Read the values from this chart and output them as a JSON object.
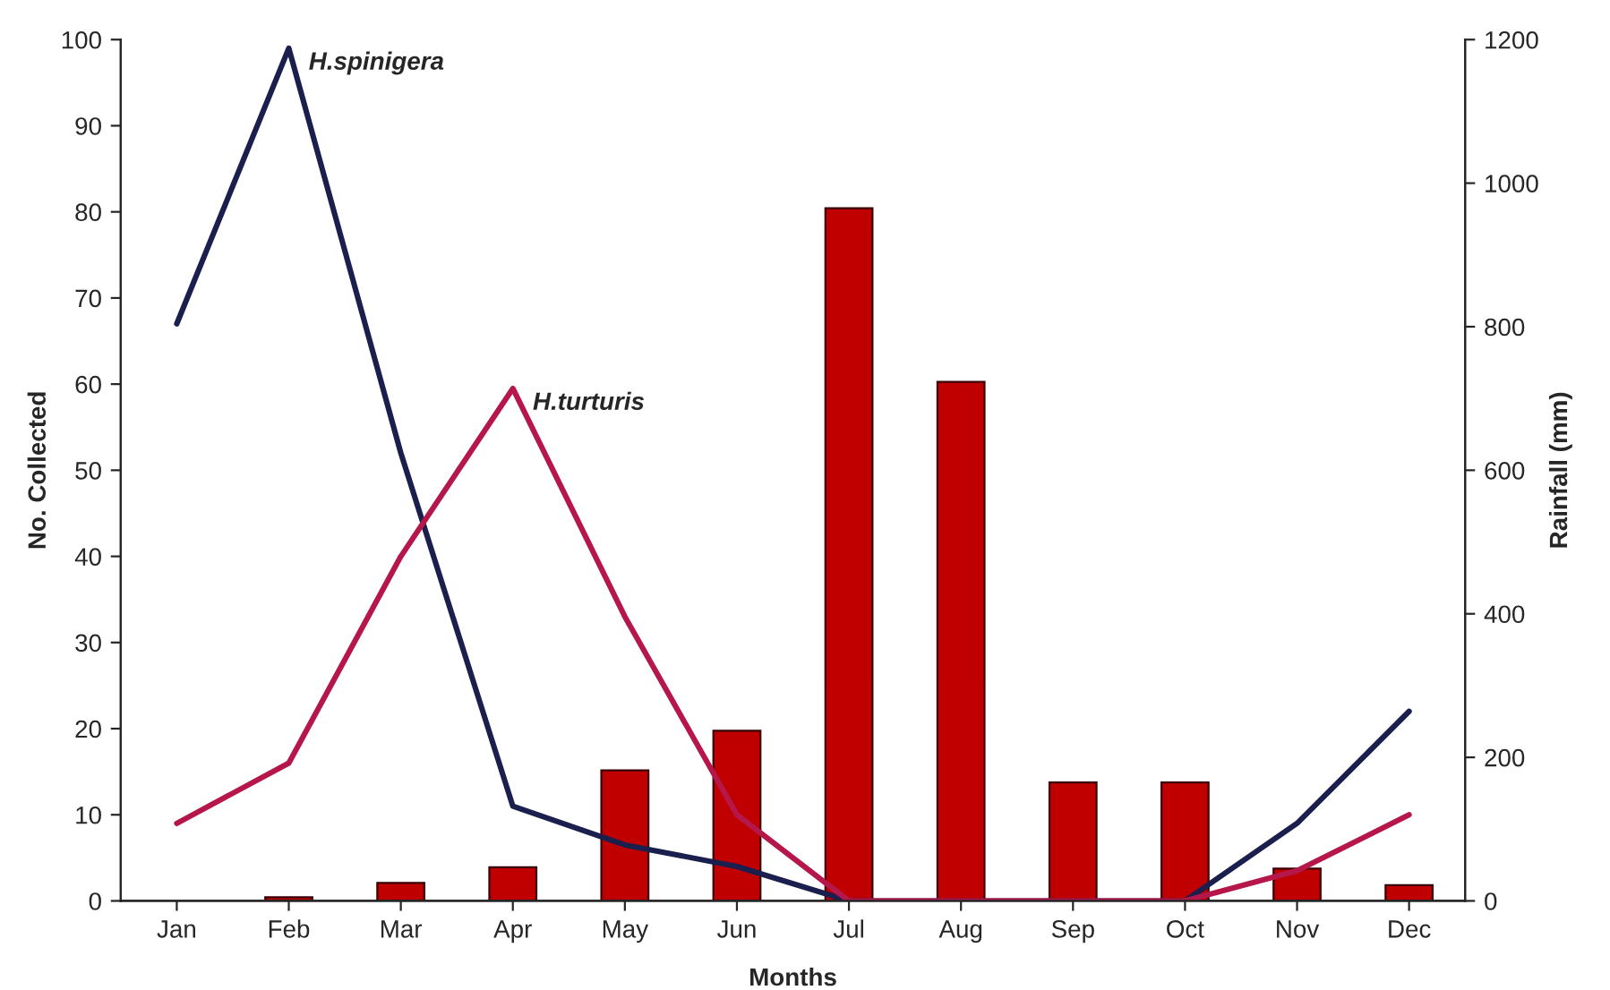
{
  "chart_data": {
    "type": "line",
    "xlabel": "Months",
    "ylabel": "No. Collected",
    "y2label": "Rainfall (mm)",
    "categories": [
      "Jan",
      "Feb",
      "Mar",
      "Apr",
      "May",
      "Jun",
      "Jul",
      "Aug",
      "Sep",
      "Oct",
      "Nov",
      "Dec"
    ],
    "series": [
      {
        "type": "bar",
        "axis": "y2",
        "color": "#c00000",
        "values": [
          null,
          5,
          25,
          47,
          182,
          237,
          965,
          723,
          165,
          165,
          45,
          22
        ]
      },
      {
        "name": "H.spinigera",
        "color": "#1a1f4d",
        "values": [
          67,
          99,
          52,
          11,
          6.5,
          4,
          0,
          0,
          0,
          0,
          9,
          22
        ]
      },
      {
        "name": "H.turturis",
        "color": "#b5174a",
        "values": [
          9,
          16,
          40,
          59.5,
          33,
          10,
          0,
          0,
          0,
          0,
          3.5,
          10
        ]
      }
    ],
    "ylim": [
      0,
      100
    ],
    "yticks": [
      0,
      10,
      20,
      30,
      40,
      50,
      60,
      70,
      80,
      90,
      100
    ],
    "y2lim": [
      0,
      1200
    ],
    "y2ticks": [
      0,
      200,
      400,
      600,
      800,
      1000,
      1200
    ],
    "grid": false,
    "legend": false,
    "marker": "none",
    "line_style": "solid"
  }
}
